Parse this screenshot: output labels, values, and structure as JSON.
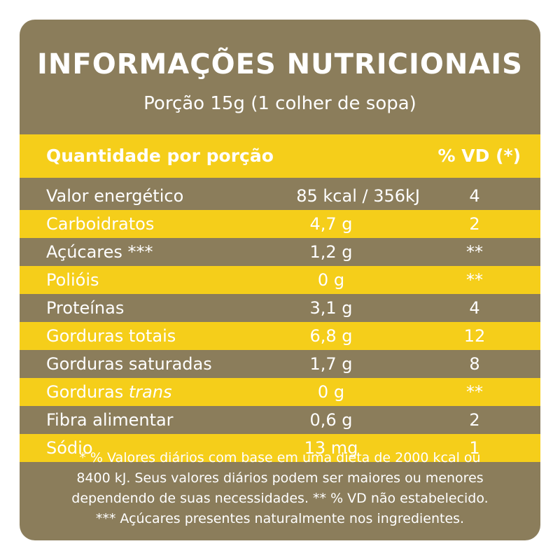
{
  "title": "INFORMAÇÕES NUTRICIONAIS",
  "subtitle": "Porção 15g (1 colher de sopa)",
  "header": {
    "left": "Quantidade por porção",
    "right": "% VD (*)"
  },
  "rows": [
    {
      "name": "Valor energético",
      "qty": "85 kcal / 356kJ",
      "vd": "4"
    },
    {
      "name": "Carboidratos",
      "qty": "4,7 g",
      "vd": "2"
    },
    {
      "name": "Açúcares ***",
      "qty": "1,2 g",
      "vd": "**"
    },
    {
      "name": "Polióis",
      "qty": "0 g",
      "vd": "**"
    },
    {
      "name": "Proteínas",
      "qty": "3,1 g",
      "vd": "4"
    },
    {
      "name": "Gorduras totais",
      "qty": "6,8 g",
      "vd": "12"
    },
    {
      "name": "Gorduras saturadas",
      "qty": "1,7 g",
      "vd": "8"
    },
    {
      "name": "Gorduras",
      "name_italic": "trans",
      "qty": "0 g",
      "vd": "**"
    },
    {
      "name": "Fibra alimentar",
      "qty": "0,6 g",
      "vd": "2"
    },
    {
      "name": "Sódio",
      "qty": "13 mg",
      "vd": "1"
    }
  ],
  "footnotes": [
    "* % Valores diários com base em uma dieta de 2000 kcal ou",
    "8400 kJ. Seus valores diários podem ser maiores ou menores",
    "dependendo de suas necessidades. ** % VD não estabelecido.",
    "*** Açúcares presentes naturalmente nos ingredientes."
  ],
  "colors": {
    "panel": "#8b7d5b",
    "accent": "#f5ce1a",
    "text": "#ffffff"
  }
}
